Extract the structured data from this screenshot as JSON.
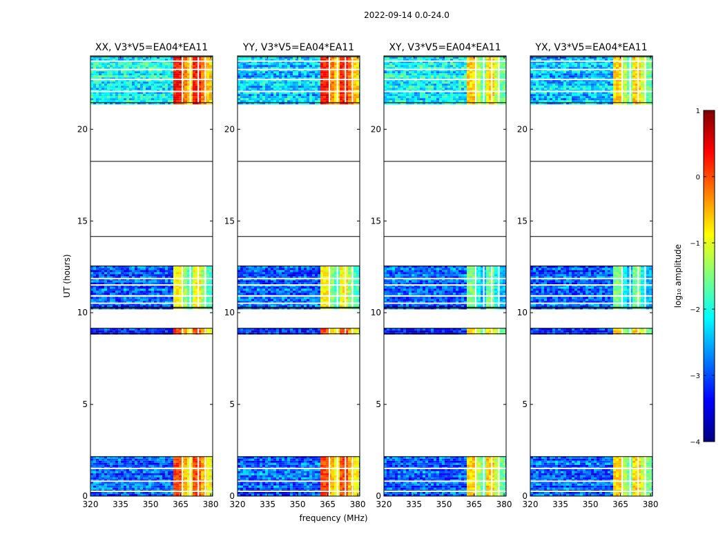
{
  "figure": {
    "suptitle": "2022-09-14 0.0-24.0",
    "ylabel": "UT (hours)",
    "xlabel": "frequency (MHz)"
  },
  "chart_data": {
    "type": "heatmap",
    "x": {
      "label": "frequency (MHz)",
      "range": [
        320,
        381
      ],
      "ticks": [
        320,
        335,
        350,
        365,
        380
      ]
    },
    "y": {
      "label": "UT (hours)",
      "range": [
        0,
        24
      ],
      "ticks": [
        0,
        5,
        10,
        15,
        20
      ]
    },
    "panels": [
      {
        "title": "XX, V3*V5=EA04*EA11"
      },
      {
        "title": "YY, V3*V5=EA04*EA11"
      },
      {
        "title": "XY, V3*V5=EA04*EA11"
      },
      {
        "title": "YX, V3*V5=EA04*EA11"
      }
    ],
    "data_blocks_hours": [
      [
        0.0,
        2.15
      ],
      [
        8.85,
        9.15
      ],
      [
        10.25,
        12.55
      ],
      [
        21.45,
        23.95
      ]
    ],
    "horizontal_lines_hours": [
      18.25,
      14.15,
      10.3
    ],
    "strong_band_mhz": [
      361,
      380
    ],
    "colorbar": {
      "label": "log₁₀ amplitude",
      "range": [
        -4,
        1
      ],
      "ticks": [
        1,
        0,
        -1,
        -2,
        -3,
        -4
      ]
    },
    "colormap": [
      "#00007f",
      "#0000ff",
      "#007fff",
      "#00ffff",
      "#7fff7f",
      "#ffff00",
      "#ff7f00",
      "#ff0000",
      "#7f0000"
    ]
  }
}
